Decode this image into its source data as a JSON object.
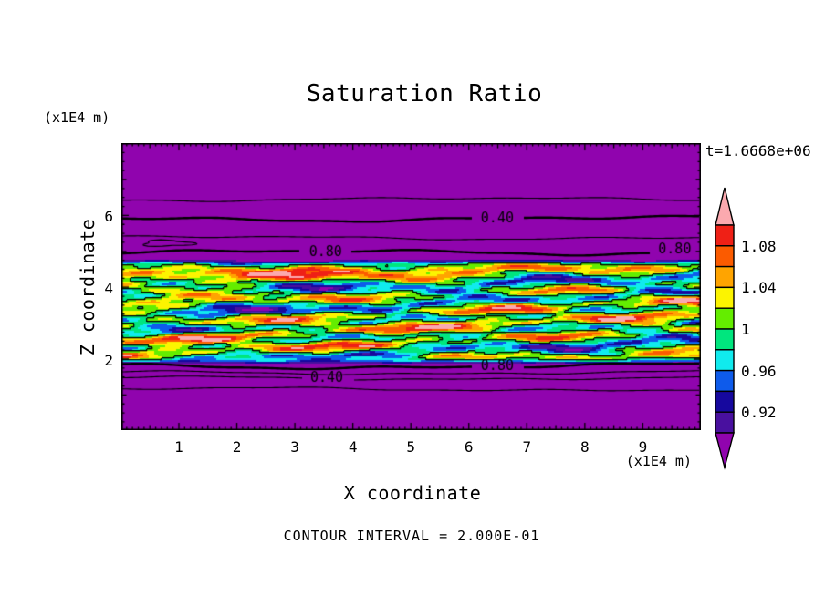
{
  "title": "Saturation Ratio",
  "timestamp": "t=1.6668e+06",
  "footer": "CONTOUR INTERVAL = 2.000E-01",
  "axes": {
    "x_label": "X coordinate",
    "x_unit": "(x1E4 m)",
    "y_label": "Z coordinate",
    "y_unit": "(x1E4 m)",
    "x_ticks": [
      "1",
      "2",
      "3",
      "4",
      "5",
      "6",
      "7",
      "8",
      "9"
    ],
    "y_ticks": [
      "6",
      "4",
      "2"
    ]
  },
  "colorbar": {
    "labels": [
      "1.08",
      "1.04",
      "1",
      "0.96",
      "0.92"
    ]
  },
  "chart_data": {
    "type": "heatmap",
    "subtype": "filled-contour",
    "title": "Saturation Ratio",
    "xlabel": "X coordinate (x1E4 m)",
    "ylabel": "Z coordinate (x1E4 m)",
    "time_label": "t=1.6668e+06",
    "x_range": [
      0,
      10
    ],
    "z_range": [
      0,
      8
    ],
    "contour_interval": 0.2,
    "contour_interval_label": "CONTOUR INTERVAL = 2.000E-01",
    "color_levels": [
      0.9,
      0.92,
      0.94,
      0.96,
      0.98,
      1.0,
      1.02,
      1.04,
      1.06,
      1.08,
      1.1
    ],
    "palette": [
      "#9004AE",
      "#49109F",
      "#16089E",
      "#0E5BEB",
      "#10EBEE",
      "#00E67E",
      "#64ED00",
      "#FCF400",
      "#FFA400",
      "#FB5B00",
      "#EF2016",
      "#FBA9AF"
    ],
    "colorbar_labels": [
      "1.08",
      "1.04",
      "1",
      "0.96",
      "0.92"
    ],
    "background_field_value": 0.1,
    "turbulent_band": {
      "z_top": 4.82,
      "z_bottom": 1.82,
      "mean": 1.0,
      "amplitude": 0.13,
      "description": "horizontally elongated turbulent streaks of saturation ratio between ~0.82 and ~1.13"
    },
    "upper_contours": [
      {
        "level": 0.2,
        "z": 6.45,
        "thick": false
      },
      {
        "level": 0.4,
        "z": 5.91,
        "thick": true
      },
      {
        "level": 0.6,
        "z": 5.38,
        "thick": false
      },
      {
        "level": 0.8,
        "z": 4.97,
        "thick": true
      }
    ],
    "lower_contours": [
      {
        "level": 0.8,
        "z": 1.8,
        "thick": true
      },
      {
        "level": 0.6,
        "z": 1.62,
        "thick": false
      },
      {
        "level": 0.4,
        "z": 1.47,
        "thick": false
      },
      {
        "level": 0.2,
        "z": 1.16,
        "thick": false
      }
    ],
    "contour_labels": [
      {
        "text": "0.40",
        "x": 6.49,
        "z": 5.91,
        "gap_z": 5.91
      },
      {
        "text": "0.80",
        "x": 3.53,
        "z": 4.97,
        "gap_z": 4.97
      },
      {
        "text": "0.80",
        "x": 9.55,
        "z": 5.05,
        "gap_z": 4.97
      },
      {
        "text": "0.80",
        "x": 6.49,
        "z": 1.8,
        "gap_z": 1.8
      },
      {
        "text": "0.40",
        "x": 3.55,
        "z": 1.47,
        "gap_z": 1.47
      }
    ]
  }
}
